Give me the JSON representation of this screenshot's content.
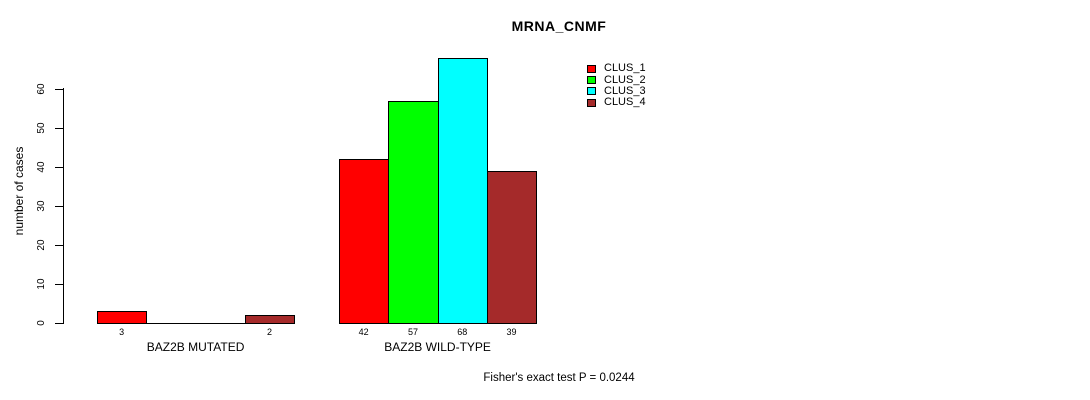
{
  "title": "MRNA_CNMF",
  "footer": "Fisher's exact test P = 0.0244",
  "chart_data": {
    "type": "bar",
    "title": "MRNA_CNMF",
    "xlabel": "",
    "ylabel": "number of cases",
    "ylim": [
      0,
      68
    ],
    "yticks": [
      0,
      10,
      20,
      30,
      40,
      50,
      60
    ],
    "grid": false,
    "legend_position": "top-right",
    "background": "#ffffff",
    "bar_border_color": "#000000",
    "categories": [
      "BAZ2B MUTATED",
      "BAZ2B WILD-TYPE"
    ],
    "series": [
      {
        "name": "CLUS_1",
        "color": "#ff0000",
        "values": [
          3,
          42
        ]
      },
      {
        "name": "CLUS_2",
        "color": "#00ff00",
        "values": [
          0,
          57
        ]
      },
      {
        "name": "CLUS_3",
        "color": "#00ffff",
        "values": [
          0,
          68
        ]
      },
      {
        "name": "CLUS_4",
        "color": "#a52a2a",
        "values": [
          2,
          39
        ]
      }
    ],
    "bar_value_labels_shown_only_when_nonzero": true,
    "annotation": "Fisher's exact test P = 0.0244"
  }
}
